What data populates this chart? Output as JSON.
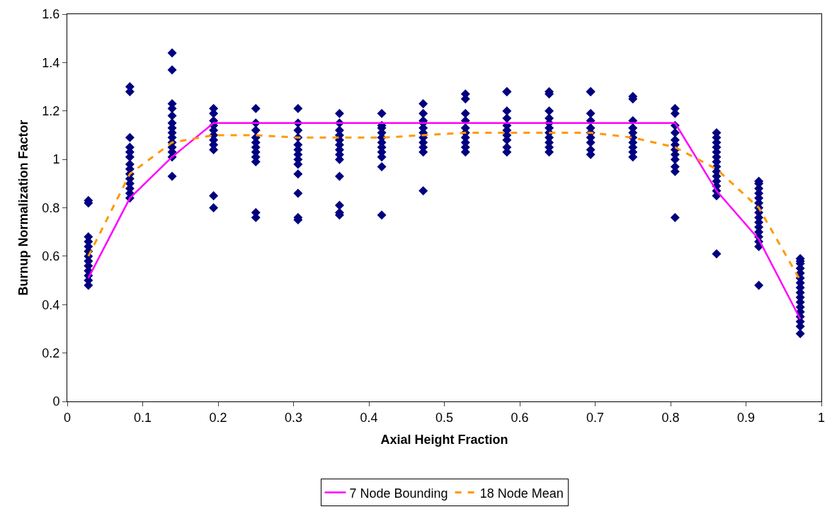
{
  "chart_data": {
    "type": "scatter",
    "xlabel": "Axial Height Fraction",
    "ylabel": "Burnup Normalization Factor",
    "xlim": [
      0,
      1
    ],
    "xticks": [
      0,
      0.1,
      0.2,
      0.3,
      0.4,
      0.5,
      0.6,
      0.7,
      0.8,
      0.9,
      1
    ],
    "ylim": [
      0,
      1.6
    ],
    "yticks": [
      0,
      0.2,
      0.4,
      0.6,
      0.8,
      1,
      1.2,
      1.4,
      1.6
    ],
    "grid": false,
    "legend": "bottom",
    "series": [
      {
        "color": "#000080",
        "marker": "diamond",
        "x": [
          0.028,
          0.028,
          0.028,
          0.028,
          0.028,
          0.028,
          0.028,
          0.028,
          0.028,
          0.028,
          0.028,
          0.028,
          0.028,
          0.083,
          0.083,
          0.083,
          0.083,
          0.083,
          0.083,
          0.083,
          0.083,
          0.083,
          0.083,
          0.083,
          0.083,
          0.083,
          0.083,
          0.139,
          0.139,
          0.139,
          0.139,
          0.139,
          0.139,
          0.139,
          0.139,
          0.139,
          0.139,
          0.139,
          0.139,
          0.139,
          0.139,
          0.194,
          0.194,
          0.194,
          0.194,
          0.194,
          0.194,
          0.194,
          0.194,
          0.194,
          0.194,
          0.194,
          0.25,
          0.25,
          0.25,
          0.25,
          0.25,
          0.25,
          0.25,
          0.25,
          0.25,
          0.25,
          0.25,
          0.306,
          0.306,
          0.306,
          0.306,
          0.306,
          0.306,
          0.306,
          0.306,
          0.306,
          0.306,
          0.306,
          0.306,
          0.306,
          0.361,
          0.361,
          0.361,
          0.361,
          0.361,
          0.361,
          0.361,
          0.361,
          0.361,
          0.361,
          0.361,
          0.361,
          0.361,
          0.417,
          0.417,
          0.417,
          0.417,
          0.417,
          0.417,
          0.417,
          0.417,
          0.417,
          0.417,
          0.417,
          0.472,
          0.472,
          0.472,
          0.472,
          0.472,
          0.472,
          0.472,
          0.472,
          0.472,
          0.472,
          0.472,
          0.528,
          0.528,
          0.528,
          0.528,
          0.528,
          0.528,
          0.528,
          0.528,
          0.528,
          0.528,
          0.583,
          0.583,
          0.583,
          0.583,
          0.583,
          0.583,
          0.583,
          0.583,
          0.583,
          0.583,
          0.639,
          0.639,
          0.639,
          0.639,
          0.639,
          0.639,
          0.639,
          0.639,
          0.639,
          0.639,
          0.639,
          0.694,
          0.694,
          0.694,
          0.694,
          0.694,
          0.694,
          0.694,
          0.694,
          0.694,
          0.694,
          0.75,
          0.75,
          0.75,
          0.75,
          0.75,
          0.75,
          0.75,
          0.75,
          0.75,
          0.75,
          0.806,
          0.806,
          0.806,
          0.806,
          0.806,
          0.806,
          0.806,
          0.806,
          0.806,
          0.806,
          0.806,
          0.806,
          0.861,
          0.861,
          0.861,
          0.861,
          0.861,
          0.861,
          0.861,
          0.861,
          0.861,
          0.861,
          0.861,
          0.861,
          0.861,
          0.861,
          0.861,
          0.917,
          0.917,
          0.917,
          0.917,
          0.917,
          0.917,
          0.917,
          0.917,
          0.917,
          0.917,
          0.917,
          0.917,
          0.917,
          0.917,
          0.917,
          0.917,
          0.972,
          0.972,
          0.972,
          0.972,
          0.972,
          0.972,
          0.972,
          0.972,
          0.972,
          0.972,
          0.972,
          0.972,
          0.972,
          0.972,
          0.972,
          0.972,
          0.972
        ],
        "values": [
          0.48,
          0.5,
          0.52,
          0.54,
          0.56,
          0.58,
          0.6,
          0.62,
          0.64,
          0.66,
          0.68,
          0.82,
          0.83,
          0.84,
          0.86,
          0.88,
          0.9,
          0.92,
          0.94,
          0.96,
          0.98,
          1.01,
          1.03,
          1.05,
          1.09,
          1.28,
          1.3,
          0.93,
          1.01,
          1.03,
          1.05,
          1.07,
          1.09,
          1.11,
          1.13,
          1.15,
          1.18,
          1.21,
          1.23,
          1.37,
          1.44,
          0.8,
          0.85,
          1.04,
          1.06,
          1.08,
          1.1,
          1.12,
          1.14,
          1.16,
          1.19,
          1.21,
          0.76,
          0.78,
          0.99,
          1.01,
          1.03,
          1.05,
          1.07,
          1.09,
          1.12,
          1.15,
          1.21,
          0.75,
          0.76,
          0.86,
          0.94,
          0.98,
          1,
          1.02,
          1.04,
          1.06,
          1.09,
          1.12,
          1.15,
          1.21,
          0.77,
          0.78,
          0.81,
          0.93,
          1,
          1.02,
          1.04,
          1.06,
          1.08,
          1.1,
          1.12,
          1.15,
          1.19,
          0.77,
          0.97,
          1.01,
          1.03,
          1.05,
          1.07,
          1.09,
          1.11,
          1.13,
          1.14,
          1.19,
          0.87,
          1.03,
          1.05,
          1.07,
          1.09,
          1.11,
          1.13,
          1.15,
          1.16,
          1.19,
          1.23,
          1.03,
          1.05,
          1.07,
          1.09,
          1.11,
          1.13,
          1.16,
          1.19,
          1.25,
          1.27,
          1.03,
          1.05,
          1.08,
          1.1,
          1.12,
          1.14,
          1.17,
          1.2,
          1.28,
          1.28,
          1.03,
          1.05,
          1.07,
          1.09,
          1.11,
          1.13,
          1.15,
          1.17,
          1.2,
          1.27,
          1.28,
          1.02,
          1.04,
          1.07,
          1.09,
          1.11,
          1.13,
          1.16,
          1.19,
          1.28,
          1.28,
          1.01,
          1.03,
          1.05,
          1.07,
          1.09,
          1.11,
          1.13,
          1.16,
          1.25,
          1.26,
          0.76,
          0.95,
          0.97,
          1,
          1.02,
          1.04,
          1.06,
          1.08,
          1.11,
          1.14,
          1.19,
          1.21,
          0.61,
          0.85,
          0.87,
          0.89,
          0.91,
          0.93,
          0.95,
          0.97,
          0.99,
          1.01,
          1.03,
          1.05,
          1.07,
          1.09,
          1.11,
          0.48,
          0.64,
          0.66,
          0.68,
          0.7,
          0.72,
          0.74,
          0.76,
          0.78,
          0.8,
          0.82,
          0.84,
          0.86,
          0.88,
          0.9,
          0.91,
          0.28,
          0.31,
          0.33,
          0.35,
          0.37,
          0.39,
          0.41,
          0.43,
          0.45,
          0.47,
          0.49,
          0.51,
          0.53,
          0.55,
          0.57,
          0.58,
          0.59
        ]
      },
      {
        "type": "line",
        "name": "7 Node Bounding",
        "color": "#ff00ff",
        "marker": "none",
        "line_style": "solid",
        "x": [
          0.028,
          0.083,
          0.139,
          0.194,
          0.806,
          0.861,
          0.917,
          0.972
        ],
        "values": [
          0.51,
          0.84,
          1.01,
          1.15,
          1.15,
          0.87,
          0.67,
          0.34
        ]
      },
      {
        "type": "line",
        "name": "18 Node Mean",
        "color": "#ff9900",
        "marker": "none",
        "line_style": "dashed",
        "x": [
          0.028,
          0.083,
          0.139,
          0.194,
          0.25,
          0.306,
          0.361,
          0.417,
          0.472,
          0.528,
          0.583,
          0.639,
          0.694,
          0.75,
          0.806,
          0.861,
          0.917,
          0.972
        ],
        "values": [
          0.6,
          0.94,
          1.07,
          1.1,
          1.1,
          1.09,
          1.09,
          1.09,
          1.1,
          1.11,
          1.11,
          1.11,
          1.11,
          1.09,
          1.05,
          0.96,
          0.8,
          0.5
        ]
      }
    ]
  }
}
